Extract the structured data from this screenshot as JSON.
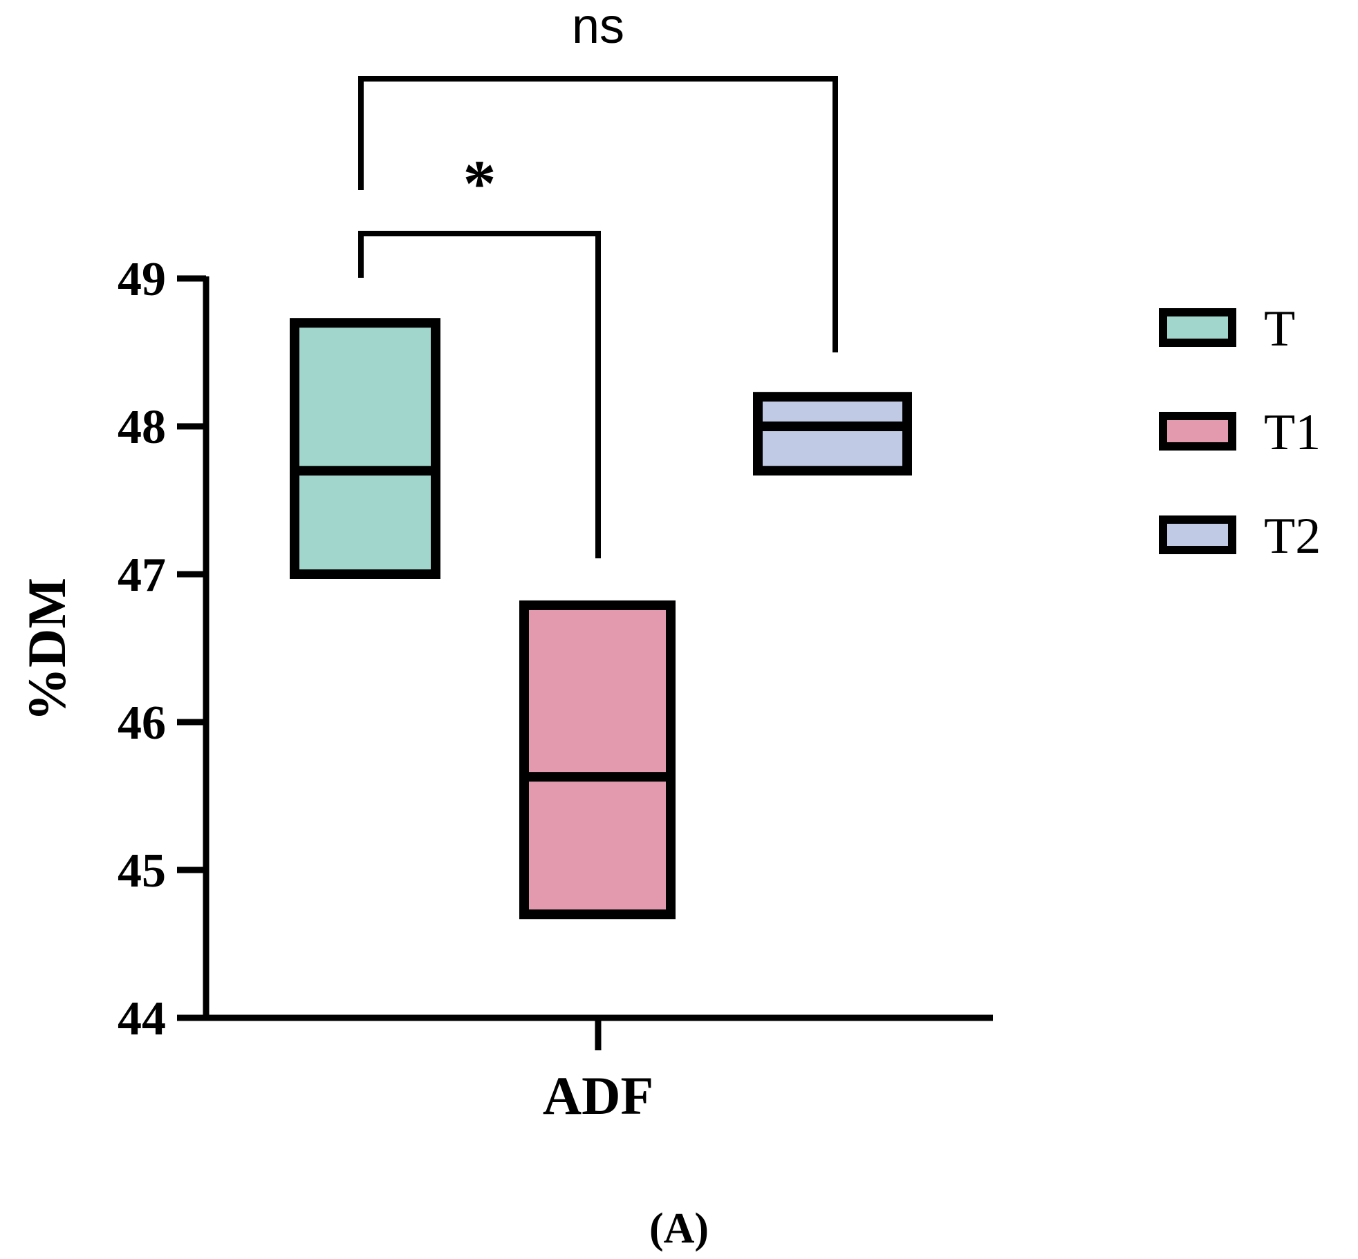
{
  "chart_data": {
    "type": "box",
    "categories": [
      "ADF"
    ],
    "xlabel": "ADF",
    "ylabel": "%DM",
    "ylim": [
      44,
      49
    ],
    "yticks": [
      44,
      45,
      46,
      47,
      48,
      49
    ],
    "grid": false,
    "legend_placement": "right",
    "series": [
      {
        "name": "T",
        "q1": 47.0,
        "median": 47.7,
        "q3": 48.7,
        "color": "#a0d6cc"
      },
      {
        "name": "T1",
        "q1": 44.7,
        "median": 45.63,
        "q3": 46.79,
        "color": "#e39aaf"
      },
      {
        "name": "T2",
        "q1": 47.7,
        "median": 48.0,
        "q3": 48.2,
        "color": "#c0cae4"
      }
    ],
    "significance": [
      {
        "from": "T",
        "to": "T1",
        "label": "*"
      },
      {
        "from": "T",
        "to": "T2",
        "label": "ns"
      }
    ],
    "panel_label": "(A)"
  }
}
